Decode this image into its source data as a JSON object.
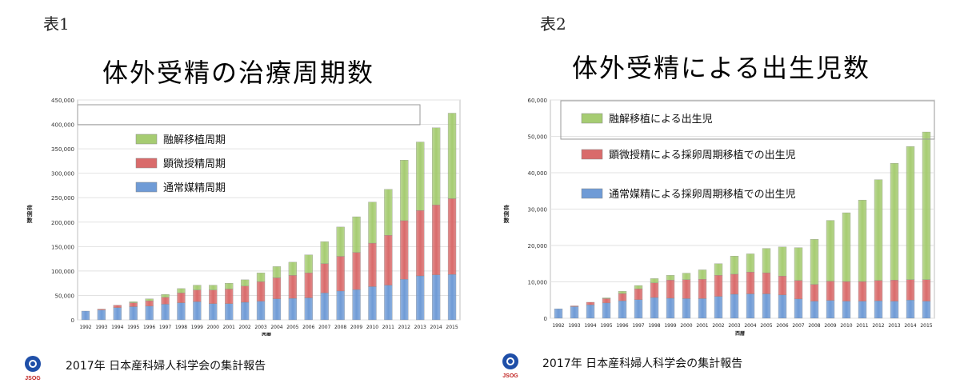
{
  "panels": [
    {
      "label": "表1",
      "footer": "2017年 日本産科婦人科学会の集計報告",
      "logo_text": "JSOG",
      "chart_data": {
        "type": "bar",
        "stacked": true,
        "title": "体外受精の治療周期数",
        "ylabel": "症例数",
        "xlabel": "西暦",
        "ylim": [
          0,
          450000
        ],
        "yticks": [
          "0",
          "50,000",
          "100,000",
          "150,000",
          "200,000",
          "250,000",
          "300,000",
          "350,000",
          "400,000",
          "450,000"
        ],
        "categories": [
          "1992",
          "1993",
          "1994",
          "1995",
          "1996",
          "1997",
          "1998",
          "1999",
          "2000",
          "2001",
          "2002",
          "2003",
          "2004",
          "2005",
          "2006",
          "2007",
          "2008",
          "2009",
          "2010",
          "2011",
          "2012",
          "2013",
          "2014",
          "2015"
        ],
        "legend_position": "upper-left",
        "series": [
          {
            "name": "通常媒精周期",
            "color": "#6f9bd6",
            "values": [
              18000,
              20000,
              25000,
              27000,
              28000,
              32000,
              35000,
              37000,
              33000,
              33000,
              36000,
              38000,
              43000,
              44000,
              45000,
              55000,
              59000,
              62000,
              68000,
              71000,
              83000,
              90000,
              92000,
              93000
            ]
          },
          {
            "name": "顕微授精周期",
            "color": "#d96b6b",
            "values": [
              0,
              2000,
              5000,
              8000,
              11000,
              14000,
              20000,
              24000,
              28000,
              30000,
              33000,
              40000,
              43000,
              47000,
              51000,
              60000,
              71000,
              76000,
              89000,
              102000,
              120000,
              134000,
              143000,
              155000
            ]
          },
          {
            "name": "融解移植周期",
            "color": "#a6cc72",
            "values": [
              0,
              0,
              0,
              2000,
              4000,
              6000,
              9000,
              10000,
              10000,
              12000,
              13000,
              18000,
              23000,
              27000,
              37000,
              45000,
              60000,
              73000,
              84000,
              94000,
              124000,
              140000,
              158000,
              175000
            ]
          }
        ]
      }
    },
    {
      "label": "表2",
      "footer": "2017年 日本産科婦人科学会の集計報告",
      "logo_text": "JSOG",
      "chart_data": {
        "type": "bar",
        "stacked": true,
        "title": "体外受精による出生児数",
        "ylabel": "症例数",
        "xlabel": "西暦",
        "ylim": [
          0,
          60000
        ],
        "yticks": [
          "0",
          "10,000",
          "20,000",
          "30,000",
          "40,000",
          "50,000",
          "60,000"
        ],
        "categories": [
          "1992",
          "1993",
          "1994",
          "1995",
          "1996",
          "1997",
          "1998",
          "1999",
          "2000",
          "2001",
          "2002",
          "2003",
          "2004",
          "2005",
          "2006",
          "2007",
          "2008",
          "2009",
          "2010",
          "2011",
          "2012",
          "2013",
          "2014",
          "2015"
        ],
        "legend_position": "upper-left",
        "series": [
          {
            "name": "通常媒精による採卵周期移植での出生児",
            "color": "#6f9bd6",
            "values": [
              2600,
              3200,
              3700,
              4200,
              4800,
              5100,
              5700,
              5500,
              5400,
              5400,
              6000,
              6600,
              6700,
              6700,
              6400,
              5300,
              4700,
              4900,
              4700,
              4700,
              4800,
              4700,
              5000,
              4700
            ]
          },
          {
            "name": "顕微授精による採卵周期移植での出生児",
            "color": "#d96b6b",
            "values": [
              0,
              200,
              700,
              1200,
              2000,
              3000,
              4000,
              5000,
              5200,
              5300,
              5800,
              5500,
              6000,
              5800,
              5200,
              5100,
              4600,
              5300,
              5400,
              5400,
              5600,
              5800,
              5600,
              5900
            ]
          },
          {
            "name": "融解移植による出生児",
            "color": "#a6cc72",
            "values": [
              0,
              0,
              0,
              200,
              600,
              900,
              1200,
              1300,
              1800,
              2600,
              3200,
              5000,
              5000,
              6700,
              8000,
              9000,
              12400,
              16700,
              18900,
              22400,
              27700,
              32100,
              36600,
              40600
            ]
          }
        ]
      }
    }
  ]
}
